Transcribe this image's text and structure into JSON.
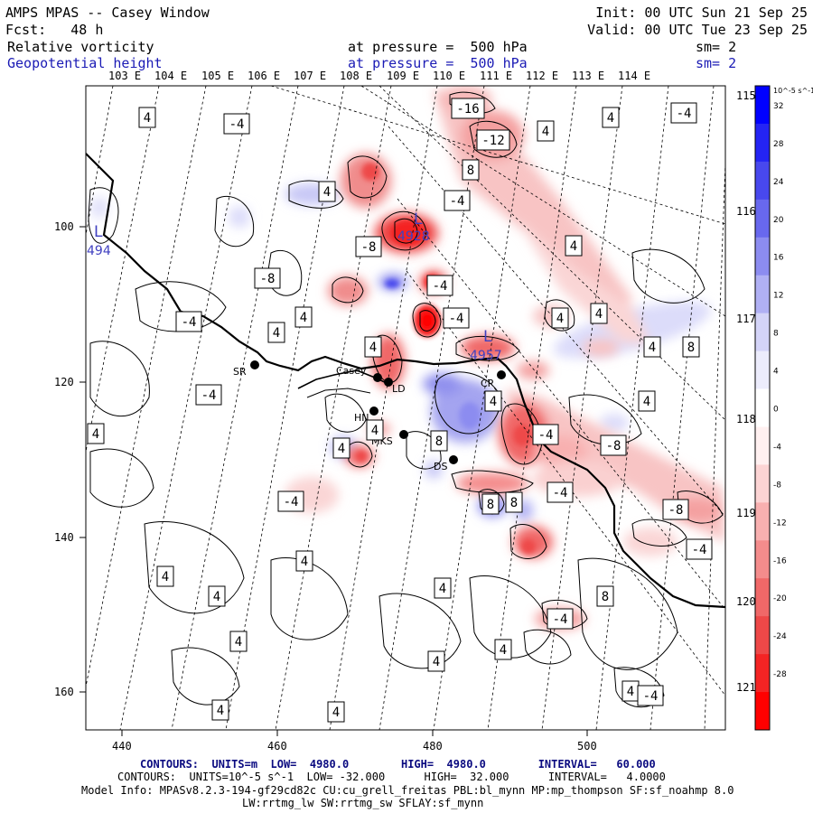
{
  "header": {
    "title": "AMPS MPAS -- Casey Window",
    "forecast": "Fcst:   48 h",
    "init": "Init: 00 UTC Sun 21 Sep 25",
    "valid": "Valid: 00 UTC Tue 23 Sep 25",
    "field1": {
      "name": "Relative vorticity",
      "level": "at pressure =  500 hPa",
      "smooth": "sm= 2"
    },
    "field2": {
      "name": "Geopotential height",
      "level": "at pressure =  500 hPa",
      "smooth": "sm= 2"
    }
  },
  "top_lon_labels": [
    "103 E",
    "104 E",
    "105 E",
    "106 E",
    "107 E",
    "108 E",
    "109 E",
    "110 E",
    "111 E",
    "112 E",
    "113 E",
    "114 E"
  ],
  "right_lon_labels": [
    "115 E",
    "116 E",
    "117 E",
    "118 E",
    "119 E",
    "120 E",
    "121 E"
  ],
  "x_ticks": [
    "440",
    "460",
    "480",
    "500"
  ],
  "y_ticks": [
    "100",
    "120",
    "140",
    "160"
  ],
  "stations": [
    {
      "code": "SR"
    },
    {
      "code": "Casey"
    },
    {
      "code": "LD"
    },
    {
      "code": "HN"
    },
    {
      "code": "MKS"
    },
    {
      "code": "DS"
    },
    {
      "code": "CP"
    }
  ],
  "lows": [
    {
      "symbol": "L",
      "value": "494"
    },
    {
      "symbol": "L",
      "value": "4928"
    },
    {
      "symbol": "L",
      "value": "4957"
    }
  ],
  "contour_labels": [
    "4",
    "-4",
    "4",
    "-4",
    "-16",
    "-12",
    "4",
    "4",
    "8",
    "-8",
    "-4",
    "4",
    "4",
    "-8",
    "-4",
    "-4",
    "4",
    "4",
    "-4",
    "4",
    "4",
    "8",
    "4",
    "4",
    "4",
    "-4",
    "4",
    "8",
    "-4",
    "-8",
    "4",
    "4",
    "8",
    "4",
    "8",
    "-4",
    "-8",
    "-4",
    "8",
    "-4",
    "4",
    "4",
    "4",
    "8",
    "-4",
    "4",
    "4",
    "4",
    "4",
    "4",
    "4",
    "-4"
  ],
  "colorbar": {
    "unit": "10^-5 s^-1",
    "levels": [
      "32",
      "28",
      "24",
      "20",
      "16",
      "12",
      "8",
      "4",
      "0",
      "-4",
      "-8",
      "-12",
      "-16",
      "-20",
      "-24",
      "-28",
      "-32"
    ],
    "colors": [
      "#0000ff",
      "#2424f4",
      "#4848ee",
      "#6868ee",
      "#8c8cf0",
      "#b0b0f4",
      "#d4d4f8",
      "#ececfc",
      "#ffffff",
      "#fff0f0",
      "#fcd4d4",
      "#f8b0b0",
      "#f48c8c",
      "#f06868",
      "#ee4848",
      "#f42424",
      "#ff0000"
    ]
  },
  "footer": {
    "line1": "CONTOURS:  UNITS=m  LOW=  4980.0        HIGH=  4980.0        INTERVAL=   60.000",
    "line2": "CONTOURS:  UNITS=10^-5 s^-1  LOW= -32.000      HIGH=  32.000      INTERVAL=   4.0000",
    "line3": "Model Info: MPASv8.2.3-194-gf29cd82c CU:cu_grell_freitas PBL:bl_mynn MP:mp_thompson SF:sf_noahmp 8.0",
    "line4": "LW:rrtmg_lw SW:rrtmg_sw SFLAY:sf_mynn"
  }
}
